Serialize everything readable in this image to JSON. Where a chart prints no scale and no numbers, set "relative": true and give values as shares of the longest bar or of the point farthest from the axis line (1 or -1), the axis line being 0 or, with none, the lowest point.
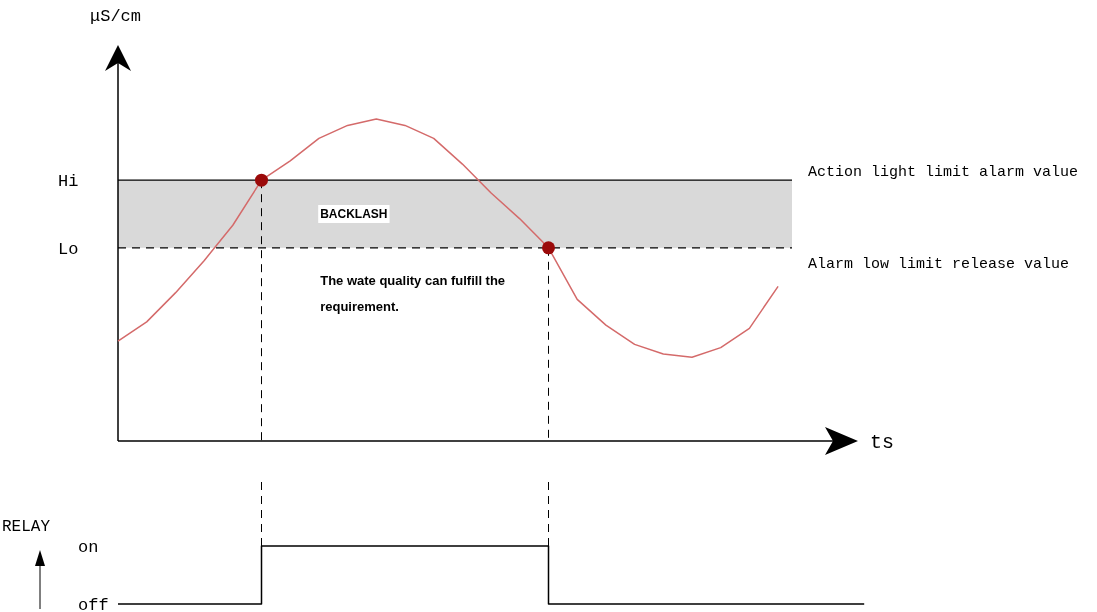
{
  "chart_data": [
    {
      "type": "line",
      "ylabel": "μS/cm",
      "xlabel": "ts",
      "relative": true,
      "categories": [
        null,
        null,
        null,
        null,
        null,
        null,
        null,
        null,
        null,
        null,
        null,
        null,
        null,
        null,
        null,
        null,
        null,
        null,
        null,
        null,
        null,
        null,
        null,
        null
      ],
      "bands": [
        {
          "axis": "y",
          "from": 0.6,
          "to": 0.81,
          "label": "BACKLASH",
          "color": "#d9d9d9"
        }
      ],
      "ref_lines": [
        {
          "axis": "y",
          "value": 0.81,
          "label": "Action light limit alarm value",
          "line_style": "solid"
        },
        {
          "axis": "y",
          "value": 0.6,
          "label": "Alarm low limit release value",
          "line_style": "dashed"
        }
      ],
      "annotations": [
        "Hi",
        "Lo",
        "The wate quality can fulfill the requirement."
      ],
      "series": [
        {
          "color": "#d46a6a",
          "values": [
            0.31,
            0.37,
            0.46,
            0.56,
            0.67,
            0.81,
            0.87,
            0.94,
            0.98,
            1,
            0.98,
            0.94,
            0.86,
            0.77,
            0.69,
            0.6,
            0.44,
            0.36,
            0.3,
            0.27,
            0.26,
            0.29,
            0.35,
            0.48
          ]
        }
      ]
    },
    {
      "type": "step",
      "ylabel": "RELAY",
      "relative": true,
      "categories": [
        null,
        null,
        null,
        null,
        null,
        null,
        null,
        null,
        null,
        null,
        null,
        null,
        null,
        null,
        null,
        null,
        null,
        null,
        null,
        null,
        null,
        null,
        null,
        null,
        null,
        null,
        null
      ],
      "annotations": [
        "on",
        "off"
      ],
      "series": [
        {
          "color": "#000000",
          "values": [
            0,
            0,
            0,
            0,
            0,
            1,
            1,
            1,
            1,
            1,
            1,
            1,
            1,
            1,
            1,
            0,
            0,
            0,
            0,
            0,
            0,
            0,
            0,
            0,
            0,
            0,
            0
          ]
        }
      ]
    }
  ]
}
